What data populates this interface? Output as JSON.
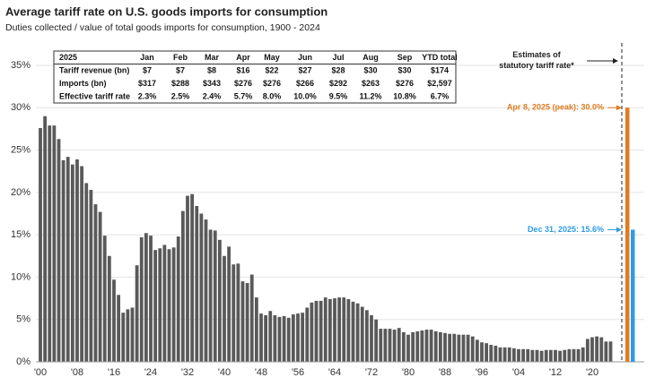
{
  "chart_data": {
    "type": "bar",
    "title": "Average tariff rate on U.S. goods imports for consumption",
    "subtitle": "Duties collected / value of total goods imports for consumption, 1900 - 2024",
    "categories": [
      "'00",
      null,
      null,
      null,
      null,
      null,
      null,
      null,
      "'08",
      null,
      null,
      null,
      null,
      null,
      null,
      null,
      "'16",
      null,
      null,
      null,
      null,
      null,
      null,
      null,
      "'24",
      null,
      null,
      null,
      null,
      null,
      null,
      null,
      "'32",
      null,
      null,
      null,
      null,
      null,
      null,
      null,
      "'40",
      null,
      null,
      null,
      null,
      null,
      null,
      null,
      "'48",
      null,
      null,
      null,
      null,
      null,
      null,
      null,
      "'56",
      null,
      null,
      null,
      null,
      null,
      null,
      null,
      "'64",
      null,
      null,
      null,
      null,
      null,
      null,
      null,
      "'72",
      null,
      null,
      null,
      null,
      null,
      null,
      null,
      "'80",
      null,
      null,
      null,
      null,
      null,
      null,
      null,
      "'88",
      null,
      null,
      null,
      null,
      null,
      null,
      null,
      "'96",
      null,
      null,
      null,
      null,
      null,
      null,
      null,
      "'04",
      null,
      null,
      null,
      null,
      null,
      null,
      null,
      "'12",
      null,
      null,
      null,
      null,
      null,
      null,
      null,
      "'20",
      null,
      null,
      null,
      null
    ],
    "values": [
      27.6,
      29.0,
      27.9,
      27.9,
      26.3,
      23.8,
      24.2,
      23.3,
      23.9,
      23.1,
      21.1,
      20.3,
      18.6,
      17.7,
      14.9,
      12.5,
      9.7,
      7.9,
      5.8,
      6.2,
      6.4,
      11.4,
      14.7,
      15.2,
      14.9,
      13.2,
      13.4,
      13.8,
      13.3,
      13.5,
      14.8,
      17.8,
      19.6,
      19.8,
      18.4,
      17.5,
      16.8,
      15.6,
      15.5,
      14.4,
      12.5,
      13.6,
      11.5,
      11.6,
      9.5,
      9.3,
      10.3,
      7.6,
      5.7,
      5.5,
      6.0,
      5.5,
      5.3,
      5.4,
      5.2,
      5.6,
      5.7,
      5.8,
      6.4,
      7.0,
      7.2,
      7.2,
      7.6,
      7.4,
      7.5,
      7.6,
      7.6,
      7.4,
      7.1,
      6.9,
      6.5,
      6.1,
      5.5,
      5.0,
      3.9,
      3.9,
      3.9,
      3.8,
      4.0,
      3.5,
      3.2,
      3.5,
      3.6,
      3.7,
      3.8,
      3.8,
      3.6,
      3.5,
      3.4,
      3.3,
      3.3,
      3.2,
      3.2,
      3.2,
      3.0,
      2.6,
      2.3,
      2.2,
      2.0,
      1.9,
      1.7,
      1.7,
      1.7,
      1.6,
      1.5,
      1.5,
      1.5,
      1.4,
      1.4,
      1.3,
      1.4,
      1.4,
      1.4,
      1.3,
      1.4,
      1.5,
      1.5,
      1.5,
      1.7,
      2.7,
      2.9,
      3.0,
      2.9,
      2.4,
      2.4
    ],
    "color": "#595959",
    "ylim": [
      0,
      35
    ],
    "yticks": [
      {
        "value": 0,
        "label": "0%"
      },
      {
        "value": 5,
        "label": "5%"
      },
      {
        "value": 10,
        "label": "10%"
      },
      {
        "value": 15,
        "label": "15%"
      },
      {
        "value": 20,
        "label": "20%"
      },
      {
        "value": 25,
        "label": "25%"
      },
      {
        "value": 30,
        "label": "30%"
      },
      {
        "value": 35,
        "label": "35%"
      }
    ],
    "grid": true,
    "estimates_title": "Estimates of statutory tariff rate*",
    "estimates": [
      {
        "label": "Apr 8, 2025 (peak): 30.0%",
        "value": 30.0,
        "color": "#e07b20"
      },
      {
        "label": "Dec 31, 2025: 15.6%",
        "value": 15.6,
        "color": "#2e9be6"
      }
    ],
    "table": {
      "header": [
        "2025",
        "Jan",
        "Feb",
        "Mar",
        "Apr",
        "May",
        "Jun",
        "Jul",
        "Aug",
        "Sep",
        "YTD total"
      ],
      "rows": [
        [
          "Tariff revenue (bn)",
          "$7",
          "$7",
          "$8",
          "$16",
          "$22",
          "$27",
          "$28",
          "$30",
          "$30",
          "$174"
        ],
        [
          "Imports (bn)",
          "$317",
          "$288",
          "$343",
          "$276",
          "$276",
          "$266",
          "$292",
          "$263",
          "$276",
          "$2,597"
        ],
        [
          "Effective tariff rate",
          "2.3%",
          "2.5%",
          "2.4%",
          "5.7%",
          "8.0%",
          "10.0%",
          "9.5%",
          "11.2%",
          "10.8%",
          "6.7%"
        ]
      ]
    }
  }
}
